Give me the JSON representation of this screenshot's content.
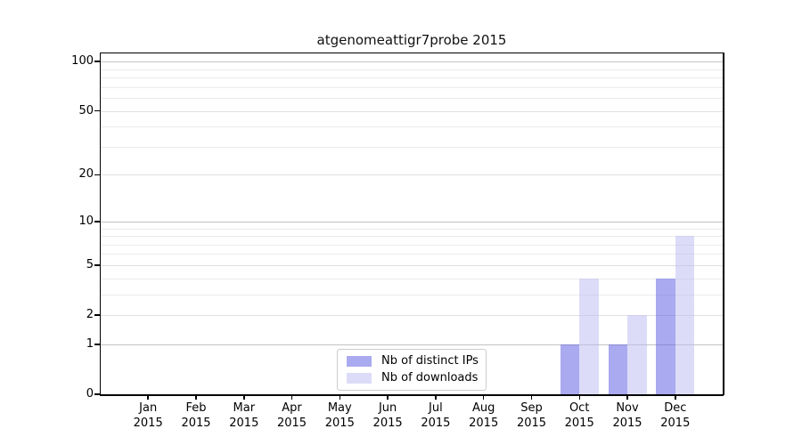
{
  "figure": {
    "title": "atgenomeattigr7probe 2015"
  },
  "chart_data": {
    "type": "bar",
    "title": "atgenomeattigr7probe 2015",
    "categories": [
      "Jan",
      "Feb",
      "Mar",
      "Apr",
      "May",
      "Jun",
      "Jul",
      "Aug",
      "Sep",
      "Oct",
      "Nov",
      "Dec"
    ],
    "x_tick_second_line": "2015",
    "series": [
      {
        "name": "Nb of distinct IPs",
        "color": "#aaaaf0",
        "color_rgba": "rgba(85,85,225,0.5)",
        "values": [
          0,
          0,
          0,
          0,
          0,
          0,
          0,
          0,
          0,
          1,
          1,
          4
        ]
      },
      {
        "name": "Nb of downloads",
        "color": "#dcdcf8",
        "color_rgba": "rgba(185,185,241,0.5)",
        "values": [
          0,
          0,
          0,
          0,
          0,
          0,
          0,
          0,
          0,
          4,
          2,
          8
        ]
      }
    ],
    "yaxis": {
      "scale": "log1p",
      "ticks": [
        0,
        1,
        2,
        5,
        10,
        20,
        50,
        100
      ],
      "minor_gridlines": [
        3,
        4,
        6,
        7,
        8,
        9,
        30,
        40,
        60,
        70,
        80,
        90
      ],
      "range_max": 112
    },
    "xlabel": "",
    "ylabel": "",
    "legend": {
      "position": "bottom-center",
      "entries": [
        "Nb of distinct IPs",
        "Nb of downloads"
      ]
    },
    "grid": true,
    "colors": {
      "grid_major": "#c3c3c3",
      "grid_mid": "#e0e0e0",
      "grid_minor": "#ebebeb",
      "axis": "#000000",
      "background": "#ffffff"
    }
  }
}
